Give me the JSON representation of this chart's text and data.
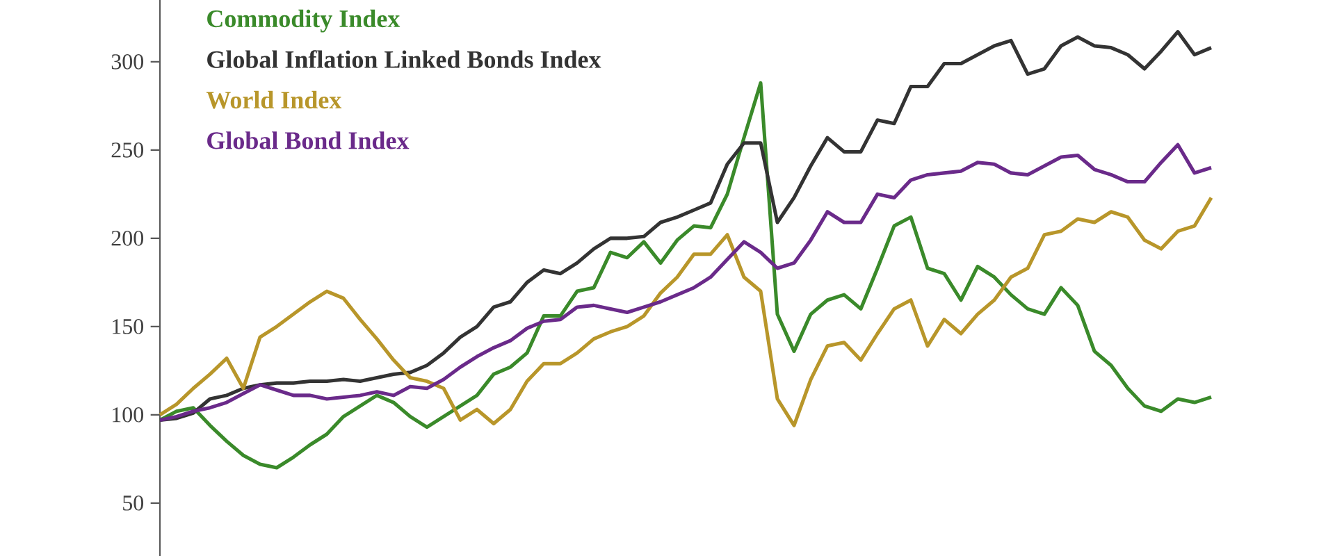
{
  "chart_data": {
    "type": "line",
    "categories": [
      null,
      null,
      null,
      null,
      null,
      null,
      null,
      null,
      null,
      null,
      null,
      null,
      null,
      null,
      null,
      null,
      null,
      null,
      null,
      null,
      null,
      null,
      null,
      null,
      null,
      null,
      null,
      null,
      null,
      null,
      null,
      null,
      null,
      null,
      null,
      null,
      null,
      null,
      null,
      null,
      null,
      null,
      null,
      null,
      null,
      null,
      null,
      null,
      null,
      null,
      null,
      null,
      null,
      null,
      null,
      null,
      null,
      null,
      null,
      null,
      null,
      null,
      null,
      null
    ],
    "series": [
      {
        "name": "Commodity Index",
        "color": "#3a8a2a",
        "values": [
          97,
          102,
          104,
          94,
          85,
          77,
          72,
          70,
          76,
          83,
          89,
          99,
          105,
          111,
          107,
          99,
          93,
          99,
          105,
          111,
          123,
          127,
          135,
          156,
          156,
          170,
          172,
          192,
          189,
          198,
          186,
          199,
          207,
          206,
          225,
          257,
          288,
          157,
          136,
          157,
          165,
          168,
          160,
          183,
          207,
          212,
          183,
          180,
          165,
          184,
          178,
          168,
          160,
          157,
          172,
          162,
          136,
          128,
          115,
          105,
          102,
          109,
          107,
          110
        ]
      },
      {
        "name": "Global Inflation Linked Bonds Index",
        "color": "#333333",
        "values": [
          97,
          98,
          101,
          109,
          111,
          115,
          117,
          118,
          118,
          119,
          119,
          120,
          119,
          121,
          123,
          124,
          128,
          135,
          144,
          150,
          161,
          164,
          175,
          182,
          180,
          186,
          194,
          200,
          200,
          201,
          209,
          212,
          216,
          220,
          242,
          254,
          254,
          209,
          223,
          241,
          257,
          249,
          249,
          267,
          265,
          286,
          286,
          299,
          299,
          304,
          309,
          312,
          293,
          296,
          309,
          314,
          309,
          308,
          304,
          296,
          306,
          317,
          304,
          308
        ]
      },
      {
        "name": "World Index",
        "color": "#b8962a",
        "values": [
          100,
          106,
          115,
          123,
          132,
          115,
          144,
          150,
          157,
          164,
          170,
          166,
          154,
          143,
          131,
          121,
          119,
          115,
          97,
          103,
          95,
          103,
          119,
          129,
          129,
          135,
          143,
          147,
          150,
          156,
          169,
          178,
          191,
          191,
          202,
          178,
          170,
          109,
          94,
          120,
          139,
          141,
          131,
          146,
          160,
          165,
          139,
          154,
          146,
          157,
          165,
          178,
          183,
          202,
          204,
          211,
          209,
          215,
          212,
          199,
          194,
          204,
          207,
          223
        ]
      },
      {
        "name": "Global Bond Index",
        "color": "#6a2a8a",
        "values": [
          97,
          99,
          102,
          104,
          107,
          112,
          117,
          114,
          111,
          111,
          109,
          110,
          111,
          113,
          111,
          116,
          115,
          120,
          127,
          133,
          138,
          142,
          149,
          153,
          154,
          161,
          162,
          160,
          158,
          161,
          164,
          168,
          172,
          178,
          188,
          198,
          192,
          183,
          186,
          199,
          215,
          209,
          209,
          225,
          223,
          233,
          236,
          237,
          238,
          243,
          242,
          237,
          236,
          241,
          246,
          247,
          239,
          236,
          232,
          232,
          243,
          253,
          237,
          240
        ]
      }
    ],
    "ylim": [
      20,
      335
    ],
    "yticks": [
      50,
      100,
      150,
      200,
      250,
      300
    ],
    "grid": false,
    "legend": "top left",
    "tick_labels": "y"
  }
}
